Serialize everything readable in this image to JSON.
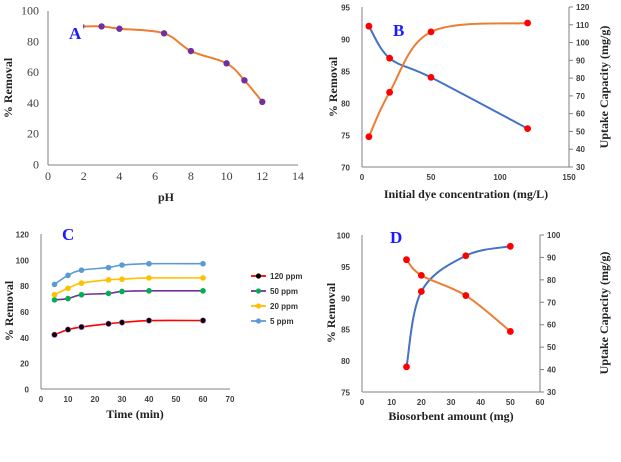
{
  "chart_data": [
    {
      "id": "A",
      "type": "line",
      "panel_label": "A",
      "xlabel": "pH",
      "ylabel": "% Removal",
      "xlim": [
        0,
        14
      ],
      "ylim": [
        0,
        100
      ],
      "xticks": [
        0,
        2,
        4,
        6,
        8,
        10,
        12,
        14
      ],
      "yticks": [
        0,
        20,
        40,
        60,
        80,
        100
      ],
      "grid": false,
      "series": [
        {
          "name": "% Removal",
          "line_color": "#ed7d31",
          "marker_color": "#7030a0",
          "x": [
            2,
            3,
            4,
            6.5,
            8,
            10,
            11,
            12
          ],
          "y": [
            90,
            90,
            88.5,
            85.5,
            74,
            66,
            55,
            41
          ]
        }
      ]
    },
    {
      "id": "B",
      "type": "line",
      "panel_label": "B",
      "xlabel": "Initial dye concentration (mg/L)",
      "ylabel": "% Removal",
      "y2label": "Uptake Capacity (mg/g)",
      "xlim": [
        0,
        150
      ],
      "ylim": [
        70,
        95
      ],
      "y2lim": [
        30,
        120
      ],
      "xticks": [
        0,
        50,
        100,
        150
      ],
      "yticks": [
        70,
        75,
        80,
        85,
        90,
        95
      ],
      "y2ticks": [
        30,
        40,
        50,
        60,
        70,
        80,
        90,
        100,
        110,
        120
      ],
      "grid": false,
      "series": [
        {
          "name": "% Removal",
          "axis": "left",
          "line_color": "#4472c4",
          "marker_color": "#ff0000",
          "x": [
            5,
            20,
            50,
            120
          ],
          "y": [
            92,
            87,
            84,
            76
          ]
        },
        {
          "name": "Uptake Capacity",
          "axis": "right",
          "line_color": "#ed7d31",
          "marker_color": "#ff0000",
          "x": [
            5,
            20,
            50,
            120
          ],
          "y": [
            47,
            72,
            106,
            111
          ]
        }
      ]
    },
    {
      "id": "C",
      "type": "line",
      "panel_label": "C",
      "xlabel": "Time (min)",
      "ylabel": "% Removal",
      "xlim": [
        0,
        70
      ],
      "ylim": [
        0,
        120
      ],
      "xticks": [
        0,
        10,
        20,
        30,
        40,
        50,
        60,
        70
      ],
      "yticks": [
        0,
        20,
        40,
        60,
        80,
        100,
        120
      ],
      "grid": false,
      "legend_position": "right",
      "series": [
        {
          "name": "120 ppm",
          "line_color": "#ff0000",
          "marker_color": "#000000",
          "x": [
            5,
            10,
            15,
            25,
            30,
            40,
            60
          ],
          "y": [
            42,
            46,
            48,
            50.5,
            51.5,
            53,
            53
          ]
        },
        {
          "name": "50 ppm",
          "line_color": "#7030a0",
          "marker_color": "#00b050",
          "x": [
            5,
            10,
            15,
            25,
            30,
            40,
            60
          ],
          "y": [
            69,
            70,
            73,
            74,
            75.5,
            76,
            76
          ]
        },
        {
          "name": "20 ppm",
          "line_color": "#ffc000",
          "marker_color": "#ffc000",
          "x": [
            5,
            10,
            15,
            25,
            30,
            40,
            60
          ],
          "y": [
            73,
            78,
            82,
            84.5,
            85,
            86,
            86
          ]
        },
        {
          "name": "5 ppm",
          "line_color": "#5b9bd5",
          "marker_color": "#5b9bd5",
          "x": [
            5,
            10,
            15,
            25,
            30,
            40,
            60
          ],
          "y": [
            81,
            88,
            92,
            94,
            96,
            97,
            97
          ]
        }
      ]
    },
    {
      "id": "D",
      "type": "line",
      "panel_label": "D",
      "xlabel": "Biosorbent amount (mg)",
      "ylabel": "% Removal",
      "y2label": "Uptake Capacity (mg/g)",
      "xlim": [
        0,
        60
      ],
      "ylim": [
        75,
        100
      ],
      "y2lim": [
        30,
        100
      ],
      "xticks": [
        0,
        10,
        20,
        30,
        40,
        50,
        60
      ],
      "yticks": [
        75,
        80,
        85,
        90,
        95,
        100
      ],
      "y2ticks": [
        30,
        40,
        50,
        60,
        70,
        80,
        90,
        100
      ],
      "grid": false,
      "series": [
        {
          "name": "% Removal",
          "axis": "left",
          "line_color": "#4472c4",
          "marker_color": "#ff0000",
          "x": [
            15,
            20,
            35,
            50
          ],
          "y": [
            79,
            91,
            96.7,
            98.2
          ]
        },
        {
          "name": "Uptake Capacity",
          "axis": "right",
          "line_color": "#ed7d31",
          "marker_color": "#ff0000",
          "x": [
            15,
            20,
            35,
            50
          ],
          "y": [
            89,
            82,
            73,
            57
          ]
        }
      ]
    }
  ]
}
